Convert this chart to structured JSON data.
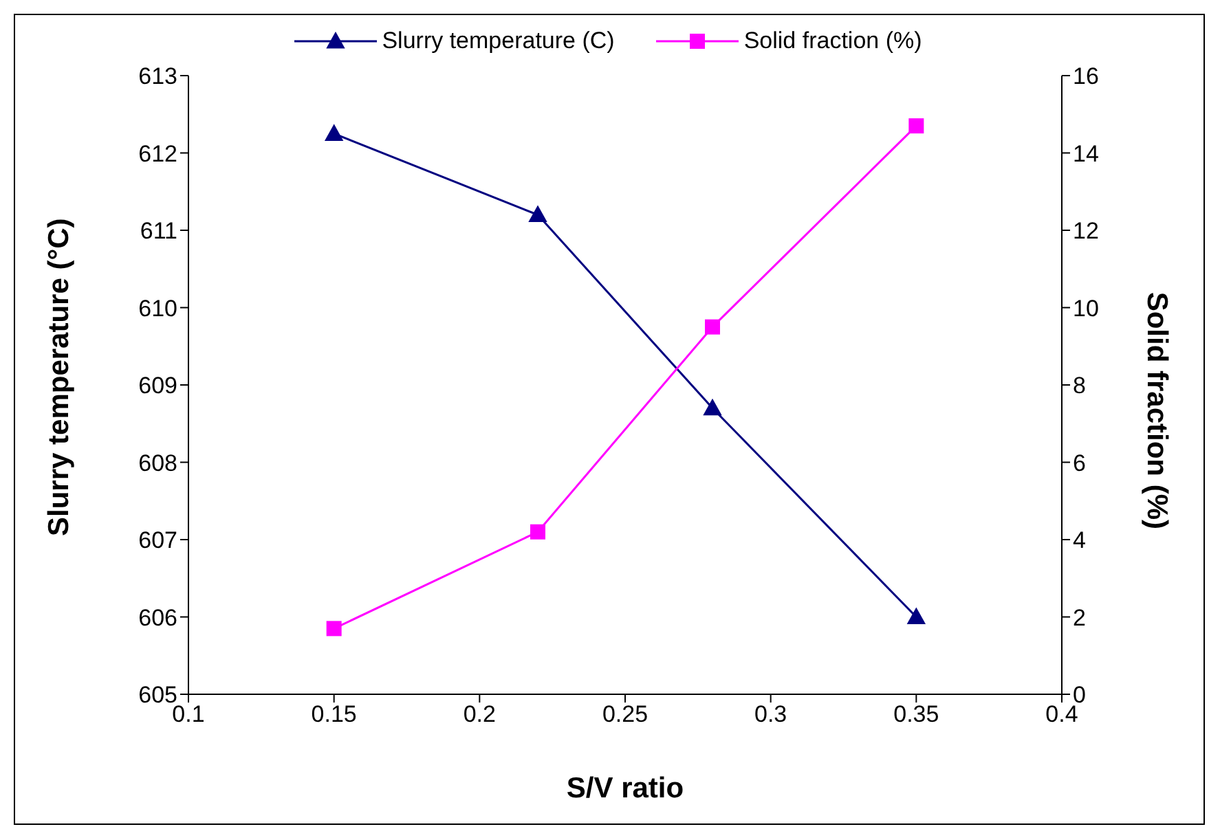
{
  "chart_data": {
    "type": "line",
    "xlabel": "S/V ratio",
    "ylabel": "Slurry temperature (°C)",
    "y2label": "Solid fraction (%)",
    "x": [
      0.15,
      0.22,
      0.28,
      0.35
    ],
    "series": [
      {
        "name": "Slurry temperature (C)",
        "color": "#000080",
        "values": [
          612.25,
          611.2,
          608.7,
          606.0
        ],
        "marker": "triangle"
      },
      {
        "name": "Solid fraction (%)",
        "color": "#ff00ff",
        "values": [
          1.7,
          4.2,
          9.5,
          14.7
        ],
        "marker": "square",
        "axis": "y2"
      }
    ],
    "xlim": [
      0.1,
      0.4
    ],
    "xticks": [
      0.1,
      0.15,
      0.2,
      0.25,
      0.3,
      0.35,
      0.4
    ],
    "ylim": [
      605,
      613
    ],
    "yticks": [
      605,
      606,
      607,
      608,
      609,
      610,
      611,
      612,
      613
    ],
    "y2lim": [
      0,
      16
    ],
    "y2ticks": [
      0,
      2,
      4,
      6,
      8,
      10,
      12,
      14,
      16
    ],
    "grid": false,
    "legend": "top"
  }
}
